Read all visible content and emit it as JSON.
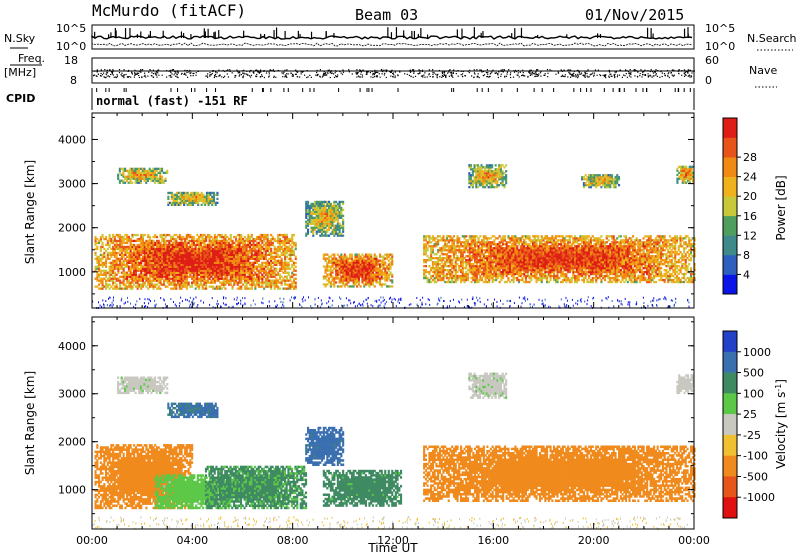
{
  "header": {
    "station": "McMurdo (fitACF)",
    "beam": "Beam 03",
    "date": "01/Nov/2015"
  },
  "top_panels": {
    "nsky_label": "N.Sky",
    "nsearch_label": "N.Search",
    "noise_ticks_left": [
      "10^5",
      "10^0"
    ],
    "noise_ticks_right": [
      "10^5",
      "10^0"
    ],
    "freq_label": "Freq.",
    "freq_unit": "[MHz]",
    "freq_ticks": [
      "18",
      "8"
    ],
    "nave_label": "Nave",
    "nave_ticks": [
      "60",
      "0"
    ],
    "cpid_label": "CPID",
    "cpid_value": "normal (fast) -151 RF"
  },
  "chart_data": [
    {
      "type": "heatmap",
      "name": "power",
      "ylabel": "Slant Range [km]",
      "x_ticks": [
        "00:00",
        "04:00",
        "08:00",
        "12:00",
        "16:00",
        "20:00",
        "00:00"
      ],
      "y_ticks": [
        1000,
        2000,
        3000,
        4000
      ],
      "xlim_hours": [
        0,
        24
      ],
      "ylim_km": [
        180,
        4600
      ],
      "colorbar": {
        "label": "Power [dB]",
        "ticks": [
          "4",
          "8",
          "12",
          "16",
          "20",
          "24",
          "28"
        ],
        "colors": [
          "#0a14e8",
          "#2e5fbe",
          "#3e8a8a",
          "#4f9e5e",
          "#c7c83a",
          "#f0b21a",
          "#f08a12",
          "#e8531a",
          "#de1e14"
        ]
      },
      "echo_regions": [
        {
          "t0": 0.1,
          "t1": 8.1,
          "r0": 600,
          "r1": 1850,
          "level": 0.62
        },
        {
          "t0": 1.0,
          "t1": 3.0,
          "r0": 3000,
          "r1": 3350,
          "level": 0.35
        },
        {
          "t0": 3.0,
          "t1": 5.0,
          "r0": 2500,
          "r1": 2800,
          "level": 0.3
        },
        {
          "t0": 8.5,
          "t1": 10.0,
          "r0": 1800,
          "r1": 2600,
          "level": 0.3
        },
        {
          "t0": 9.2,
          "t1": 12.0,
          "r0": 650,
          "r1": 1400,
          "level": 0.6
        },
        {
          "t0": 13.2,
          "t1": 24.0,
          "r0": 750,
          "r1": 1800,
          "level": 0.6
        },
        {
          "t0": 15.0,
          "t1": 16.5,
          "r0": 2900,
          "r1": 3400,
          "level": 0.35
        },
        {
          "t0": 19.5,
          "t1": 21.0,
          "r0": 2900,
          "r1": 3200,
          "level": 0.3
        },
        {
          "t0": 23.3,
          "t1": 24.0,
          "r0": 3000,
          "r1": 3400,
          "level": 0.4
        }
      ]
    },
    {
      "type": "heatmap",
      "name": "velocity",
      "ylabel": "Slant Range [km]",
      "xlabel": "Time UT",
      "x_ticks": [
        "00:00",
        "04:00",
        "08:00",
        "12:00",
        "16:00",
        "20:00",
        "00:00"
      ],
      "y_ticks": [
        1000,
        2000,
        3000,
        4000
      ],
      "xlim_hours": [
        0,
        24
      ],
      "ylim_km": [
        180,
        4600
      ],
      "colorbar": {
        "label": "Velocity [m s",
        "label_sup": "-1",
        "label_end": "]",
        "ticks": [
          "1000",
          "500",
          "100",
          "25",
          "-25",
          "-100",
          "-500",
          "-1000"
        ],
        "colors": [
          "#2240c8",
          "#3a6fb0",
          "#3f8a62",
          "#5cc848",
          "#c8c8c0",
          "#f0c030",
          "#f08a1c",
          "#e8551a",
          "#e01010"
        ]
      },
      "echo_regions": [
        {
          "t0": 0.1,
          "t1": 4.0,
          "r0": 600,
          "r1": 1950,
          "v": -300
        },
        {
          "t0": 2.5,
          "t1": 5.5,
          "r0": 600,
          "r1": 1300,
          "v": 60
        },
        {
          "t0": 4.5,
          "t1": 8.5,
          "r0": 600,
          "r1": 1500,
          "v": 120
        },
        {
          "t0": 1.0,
          "t1": 3.0,
          "r0": 3000,
          "r1": 3350,
          "v": 10
        },
        {
          "t0": 3.0,
          "t1": 5.0,
          "r0": 2500,
          "r1": 2800,
          "v": 600
        },
        {
          "t0": 8.5,
          "t1": 10.0,
          "r0": 1500,
          "r1": 2300,
          "v": 700
        },
        {
          "t0": 9.2,
          "t1": 12.3,
          "r0": 650,
          "r1": 1400,
          "v": 150
        },
        {
          "t0": 13.2,
          "t1": 24.0,
          "r0": 750,
          "r1": 1900,
          "v": -300
        },
        {
          "t0": 15.0,
          "t1": 16.5,
          "r0": 2900,
          "r1": 3400,
          "v": 10
        },
        {
          "t0": 23.3,
          "t1": 24.0,
          "r0": 3000,
          "r1": 3400,
          "v": 0
        }
      ]
    }
  ]
}
